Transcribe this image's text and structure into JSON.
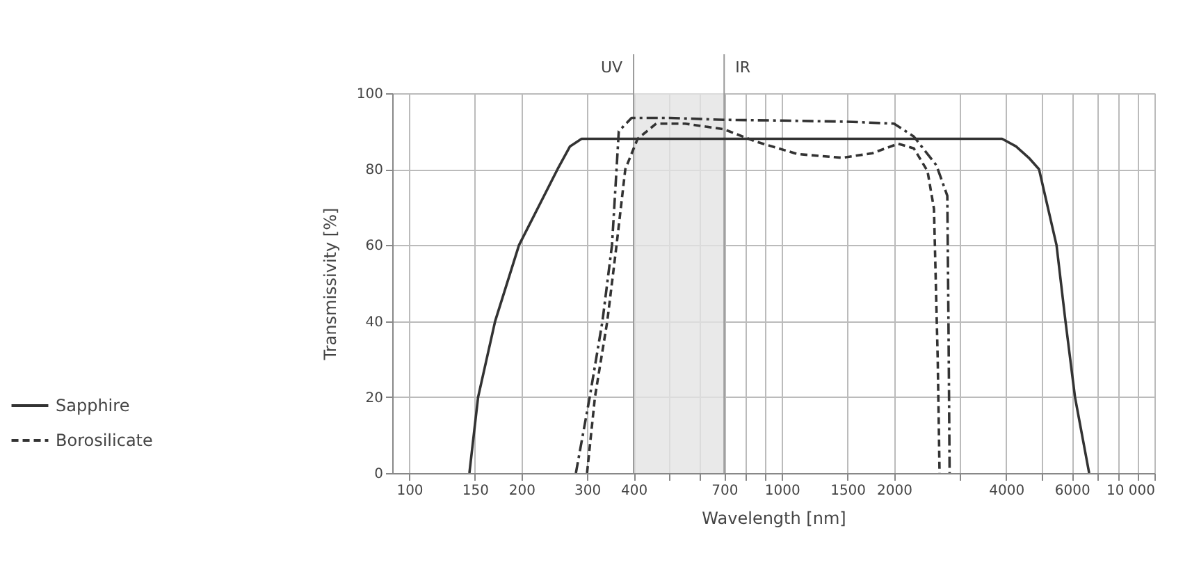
{
  "chart_data": {
    "type": "line",
    "xlabel": "Wavelength [nm]",
    "ylabel": "Transmissivity [%]",
    "log": "x",
    "xlim": [
      90,
      10000
    ],
    "ylim": [
      0,
      100
    ],
    "yticks": [
      0,
      20,
      40,
      60,
      80,
      100
    ],
    "xticks": [
      100,
      150,
      200,
      300,
      400,
      {
        "value": 500,
        "label": null
      },
      {
        "value": 600,
        "label": null
      },
      700,
      {
        "value": 800,
        "label": null
      },
      {
        "value": 900,
        "label": null
      },
      1000,
      1500,
      2000,
      {
        "value": 3000,
        "label": null
      },
      4000,
      {
        "value": 5000,
        "label": null
      },
      6000,
      {
        "value": 7000,
        "label": null
      },
      {
        "value": 8000,
        "label": null
      },
      {
        "value": 9000,
        "label": null
      },
      {
        "value": 10000,
        "label": "10 000"
      }
    ],
    "grid": true,
    "legend": "bottom left",
    "bands": [
      {
        "axis": "x",
        "from": 400,
        "to": 700,
        "color": "#e4e4e4"
      }
    ],
    "annotations": [
      "UV",
      "IR"
    ],
    "series": [
      {
        "name": "Sapphire",
        "color": "#333333",
        "line_style": "solid",
        "x": [
          145,
          153,
          170,
          197,
          250,
          270,
          290,
          400,
          1000,
          2000,
          3900,
          4250,
          4600,
          4900,
          5460,
          5770,
          6120,
          6680
        ],
        "values": [
          0,
          20,
          40,
          60,
          80,
          86,
          88,
          88,
          88,
          88,
          88,
          86,
          83,
          80,
          60,
          40,
          20,
          0
        ]
      },
      {
        "color": "#333333",
        "line_style": "dashdot",
        "x": [
          280,
          305,
          330,
          350,
          360,
          365,
          395,
          500,
          700,
          1000,
          1500,
          2000,
          2260,
          2600,
          2780,
          2800,
          2820
        ],
        "values": [
          0,
          20,
          40,
          60,
          80,
          90,
          93.5,
          93.5,
          93,
          92.8,
          92.5,
          92,
          88.6,
          81,
          73,
          40,
          0
        ]
      },
      {
        "name": "Borosilicate",
        "color": "#333333",
        "line_style": "dashed",
        "x": [
          300,
          315,
          340,
          360,
          380,
          410,
          460,
          550,
          700,
          850,
          1100,
          1450,
          1750,
          2050,
          2260,
          2460,
          2560,
          2620,
          2650
        ],
        "values": [
          0,
          20,
          40,
          60,
          80,
          88,
          92,
          92,
          90.5,
          87.3,
          84,
          83,
          84.2,
          86.7,
          85.5,
          79.5,
          69.6,
          30,
          0
        ]
      }
    ]
  }
}
